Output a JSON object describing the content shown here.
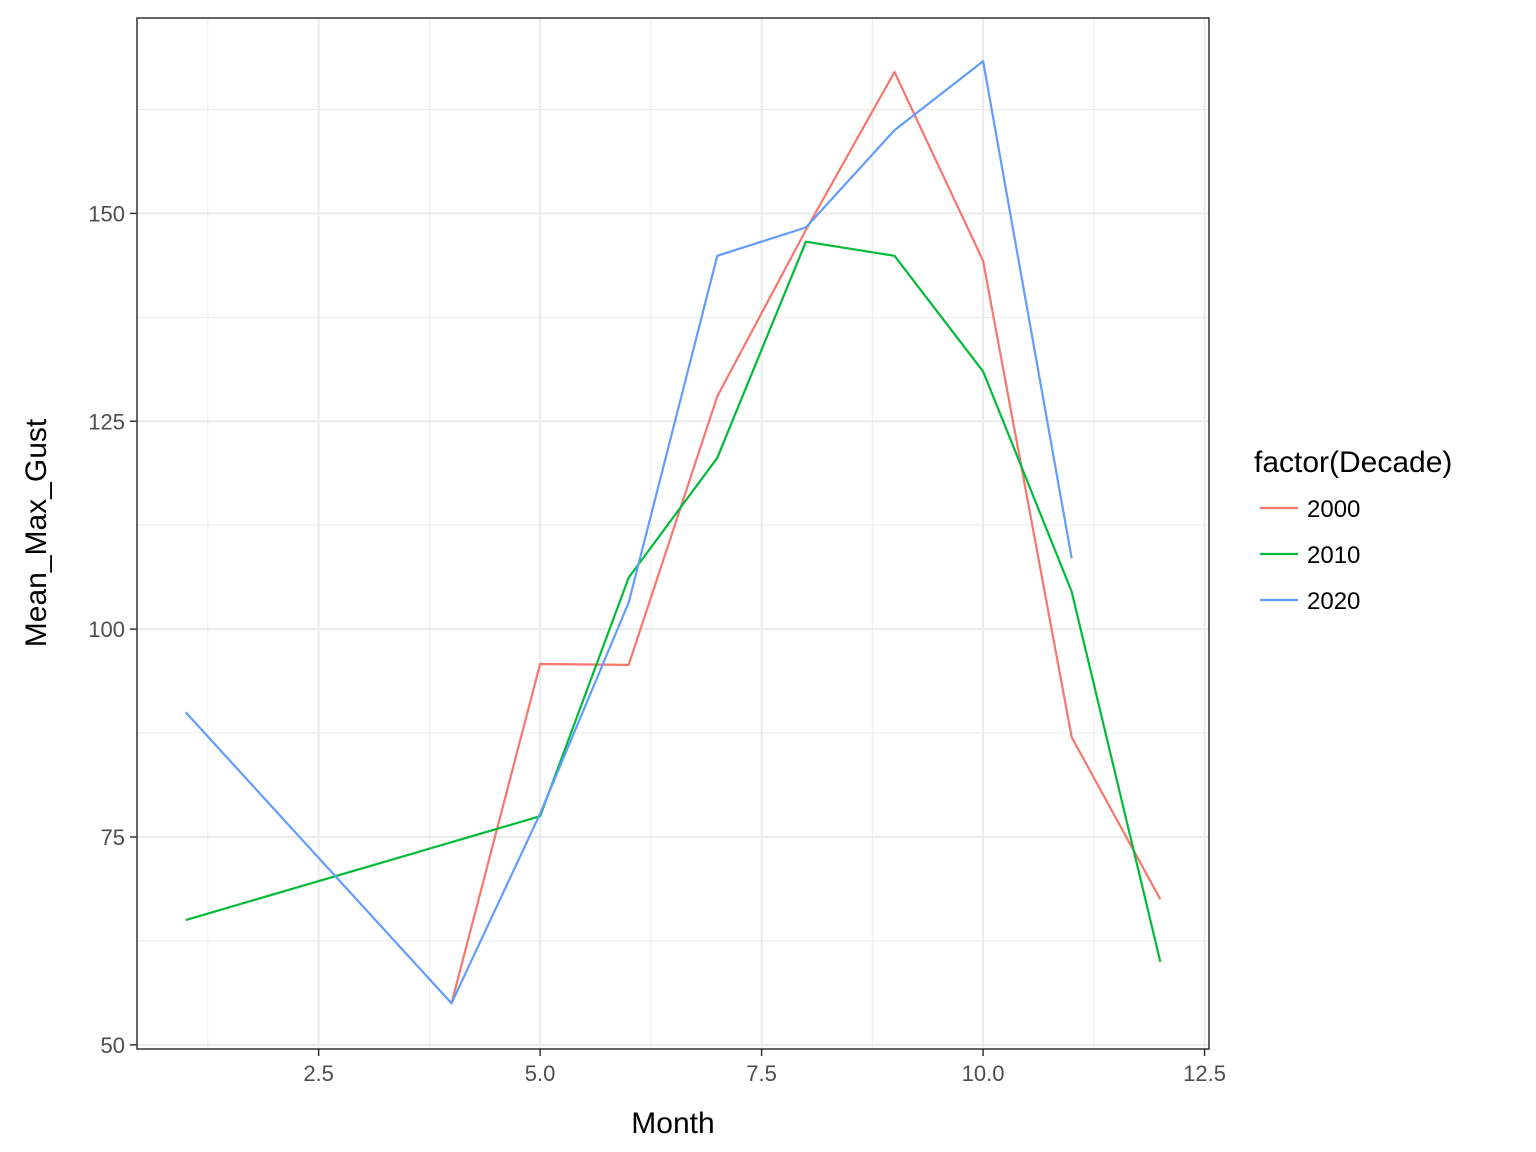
{
  "chart_data": {
    "type": "line",
    "xlabel": "Month",
    "ylabel": "Mean_Max_Gust",
    "xlim": [
      0.45,
      12.55
    ],
    "ylim": [
      49.5,
      173.5
    ],
    "x_ticks": [
      2.5,
      5.0,
      7.5,
      10.0,
      12.5
    ],
    "x_tick_labels": [
      "2.5",
      "5.0",
      "7.5",
      "10.0",
      "12.5"
    ],
    "y_ticks": [
      50,
      75,
      100,
      125,
      150
    ],
    "y_tick_labels": [
      "50",
      "75",
      "100",
      "125",
      "150"
    ],
    "grid": true,
    "legend": {
      "title": "factor(Decade)",
      "position": "right"
    },
    "series": [
      {
        "name": "2000",
        "color": "#F8766D",
        "x": [
          4,
          5,
          6,
          7,
          8,
          9,
          10,
          11,
          12
        ],
        "y": [
          55,
          95.8,
          95.7,
          128,
          148,
          167,
          144.3,
          87,
          67.5
        ]
      },
      {
        "name": "2010",
        "color": "#00BA38",
        "x": [
          1,
          5,
          6,
          7,
          8,
          9,
          10,
          11,
          12
        ],
        "y": [
          65,
          77.5,
          106.2,
          120.6,
          146.6,
          144.9,
          131,
          104.5,
          60
        ]
      },
      {
        "name": "2020",
        "color": "#619CFF",
        "x": [
          1,
          4,
          5,
          6,
          7,
          8,
          9,
          10,
          11
        ],
        "y": [
          90,
          55,
          77.8,
          103.2,
          144.9,
          148.3,
          160,
          168.3,
          108.5
        ]
      }
    ]
  }
}
